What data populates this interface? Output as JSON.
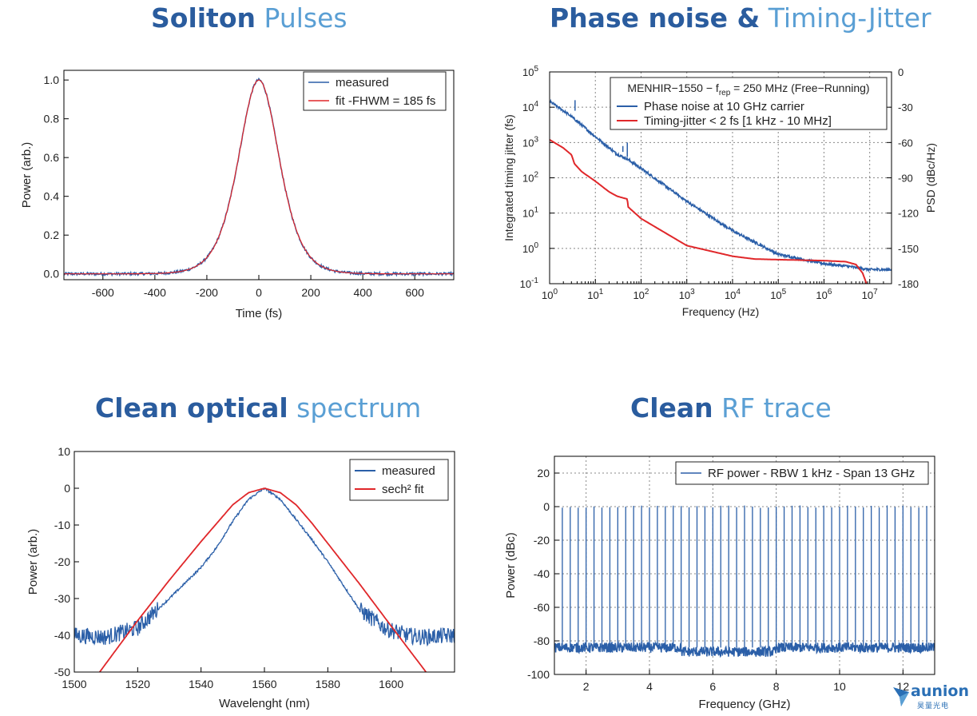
{
  "sections": {
    "soliton": {
      "strong": "Soliton",
      "light": " Pulses"
    },
    "phase": {
      "strong": "Phase noise &",
      "light": " Timing-Jitter"
    },
    "spectrum": {
      "strong": "Clean optical",
      "light": " spectrum"
    },
    "rf": {
      "strong": "Clean",
      "light": " RF trace"
    }
  },
  "logo": {
    "name": "aunion",
    "sub": "昊量光电"
  },
  "colors": {
    "title_strong": "#2a5c9e",
    "title_light": "#5a9fd4",
    "blue": "#2b5fa8",
    "red": "#e0272a"
  },
  "chart_data": [
    {
      "id": "soliton",
      "type": "line",
      "xlabel": "Time (fs)",
      "ylabel": "Power (arb.)",
      "xlim": [
        -750,
        750
      ],
      "ylim": [
        -0.03,
        1.05
      ],
      "xticks": [
        -600,
        -400,
        -200,
        0,
        200,
        400,
        600
      ],
      "yticks": [
        0.0,
        0.2,
        0.4,
        0.6,
        0.8,
        1.0
      ],
      "legend_position": "top-right",
      "series": [
        {
          "name": "measured",
          "color": "#2b5fa8",
          "shape": "sech2",
          "center": 0,
          "fwhm": 185,
          "peak": 1.0,
          "noisy": true
        },
        {
          "name": "fit -FHWM = 185 fs",
          "color": "#e0272a",
          "shape": "sech2",
          "center": 0,
          "fwhm": 185,
          "peak": 1.0
        }
      ]
    },
    {
      "id": "phase",
      "type": "line",
      "xscale": "log",
      "xlabel": "Frequency (Hz)",
      "ylabel_left": "Integrated timing jitter (fs)",
      "ylabel_right": "PSD (dBc/Hz)",
      "xlim": [
        1,
        30000000
      ],
      "ylim_left": [
        0.1,
        100000
      ],
      "ylim_right": [
        -180,
        0
      ],
      "xtick_exponents": [
        0,
        1,
        2,
        3,
        4,
        5,
        6,
        7
      ],
      "ytick_left_exponents": [
        -1,
        0,
        1,
        2,
        3,
        4,
        5
      ],
      "yticks_right": [
        0,
        -30,
        -60,
        -90,
        -120,
        -150,
        -180
      ],
      "grid": true,
      "legend_title": "MENHIR−1550 − f",
      "legend_title_sub": "rep",
      "legend_title_rest": " = 250 MHz (Free−Running)",
      "legend_position": "top-right",
      "series": [
        {
          "name": "Phase noise at 10 GHz carrier",
          "color": "#2b5fa8",
          "axis": "right",
          "x": [
            1,
            2,
            3,
            5,
            10,
            30,
            50,
            100,
            1000,
            10000,
            100000,
            1000000,
            3000000,
            10000000,
            30000000
          ],
          "y": [
            -25,
            -33,
            -38,
            -45,
            -55,
            -70,
            -74,
            -82,
            -110,
            -135,
            -155,
            -163,
            -165,
            -168,
            -168
          ]
        },
        {
          "name": "Timing-jitter < 2 fs [1 kHz - 10 MHz]",
          "color": "#e0272a",
          "axis": "left",
          "x": [
            1,
            2,
            3,
            3.5,
            5,
            10,
            20,
            30,
            50,
            52,
            100,
            1000,
            10000,
            30000,
            100000,
            1000000,
            3000000,
            5000000,
            7000000,
            8500000
          ],
          "y": [
            1200,
            700,
            450,
            250,
            150,
            80,
            40,
            30,
            25,
            15,
            7,
            1.2,
            0.6,
            0.5,
            0.48,
            0.45,
            0.42,
            0.35,
            0.2,
            0.1
          ]
        }
      ]
    },
    {
      "id": "spectrum",
      "type": "line",
      "xlabel": "Wavelenght (nm)",
      "ylabel": "Power (arb.)",
      "xlim": [
        1500,
        1620
      ],
      "ylim": [
        -50,
        10
      ],
      "xticks": [
        1500,
        1520,
        1540,
        1560,
        1580,
        1600
      ],
      "yticks": [
        10,
        0,
        -10,
        -20,
        -30,
        -40,
        -50
      ],
      "legend_position": "top-right",
      "series": [
        {
          "name": "measured",
          "color": "#2b5fa8",
          "x": [
            1500,
            1510,
            1520,
            1530,
            1540,
            1545,
            1550,
            1555,
            1560,
            1565,
            1570,
            1575,
            1580,
            1590,
            1598,
            1605,
            1610,
            1620
          ],
          "y": [
            -40,
            -40.5,
            -38,
            -30,
            -21.5,
            -16,
            -9,
            -3,
            0,
            -3,
            -8.5,
            -14,
            -20,
            -33,
            -38,
            -40,
            -40.5,
            -40
          ]
        },
        {
          "name": "sech² fit",
          "color": "#e0272a",
          "x": [
            1508,
            1520,
            1530,
            1540,
            1545,
            1550,
            1555,
            1560,
            1565,
            1570,
            1575,
            1580,
            1590,
            1600,
            1611
          ],
          "y": [
            -50,
            -36,
            -25,
            -14.5,
            -9.5,
            -4.5,
            -1.2,
            0,
            -1.2,
            -4.5,
            -9.5,
            -15,
            -26,
            -37.5,
            -50
          ]
        }
      ]
    },
    {
      "id": "rf",
      "type": "line",
      "xlabel": "Frequency (GHz)",
      "ylabel": "Power (dBc)",
      "xlim": [
        1,
        13
      ],
      "ylim": [
        -100,
        30
      ],
      "xticks": [
        2,
        4,
        6,
        8,
        10,
        12
      ],
      "yticks": [
        20,
        0,
        -20,
        -40,
        -60,
        -80,
        -100
      ],
      "grid": true,
      "legend_position": "top-right",
      "series": [
        {
          "name": "RF power - RBW 1 kHz - Span 13 GHz",
          "color": "#2b5fa8",
          "peak_spacing_ghz": 0.25,
          "peak_start_ghz": 1.25,
          "peak_end_ghz": 12.75,
          "peak_level_dbc": 0,
          "floor_dbc": -84
        }
      ]
    }
  ]
}
